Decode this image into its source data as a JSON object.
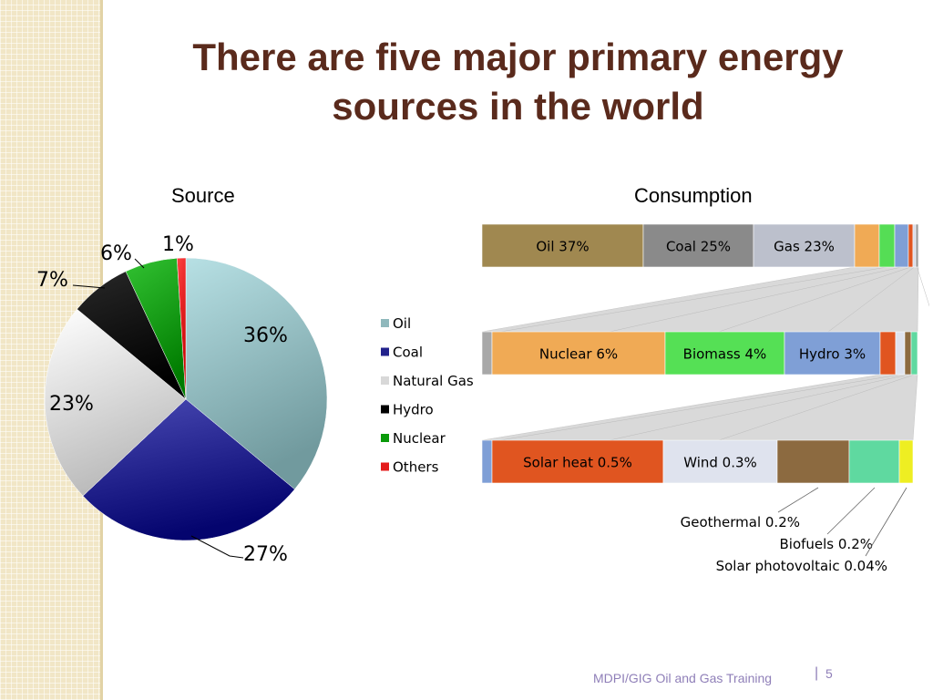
{
  "slide": {
    "title_line1": "There are five major primary energy",
    "title_line2": "sources in the world",
    "footer": "MDPI/GIG Oil and Gas Training",
    "separator": "|",
    "page_number": "5"
  },
  "chart_data": [
    {
      "type": "pie",
      "title": "Source",
      "categories": [
        "Oil",
        "Coal",
        "Natural Gas",
        "Hydro",
        "Nuclear",
        "Others"
      ],
      "values": [
        36,
        27,
        23,
        7,
        6,
        1
      ],
      "value_labels": [
        "36%",
        "27%",
        "23%",
        "7%",
        "6%",
        "1%"
      ],
      "colors": [
        "#8fb8bc",
        "#22228c",
        "#d8d8d8",
        "#000000",
        "#0a9a0a",
        "#e41b1b"
      ],
      "legend": {
        "position": "right",
        "entries": [
          "Oil",
          "Coal",
          "Natural Gas",
          "Hydro",
          "Nuclear",
          "Others"
        ]
      }
    },
    {
      "type": "bar",
      "title": "Consumption",
      "orientation": "horizontal stacked (exploded)",
      "rows": [
        {
          "segments": [
            {
              "label": "Oil 37%",
              "value": 37,
              "color": "#a08850"
            },
            {
              "label": "Coal 25%",
              "value": 25,
              "color": "#8a8a8a"
            },
            {
              "label": "Gas 23%",
              "value": 23,
              "color": "#bcc0cc"
            },
            {
              "label": "",
              "value": 6,
              "color": "#f0aa55"
            },
            {
              "label": "",
              "value": 4,
              "color": "#55dd55"
            },
            {
              "label": "",
              "value": 3,
              "color": "#7f9fd6"
            },
            {
              "label": "",
              "value": 0.5,
              "color": "#e05520"
            },
            {
              "label": "",
              "value": 0.3,
              "color": "#d6dbe8"
            },
            {
              "label": "",
              "value": 0.44,
              "color": "#a0a0a0"
            }
          ]
        },
        {
          "segments": [
            {
              "label": "",
              "value": 0.44,
              "color": "#a8a8a8"
            },
            {
              "label": "Nuclear 6%",
              "value": 6,
              "color": "#f0aa55"
            },
            {
              "label": "Biomass 4%",
              "value": 4,
              "color": "#55e055"
            },
            {
              "label": "Hydro 3%",
              "value": 3,
              "color": "#7f9fd6"
            },
            {
              "label": "",
              "value": 0.5,
              "color": "#e05520"
            },
            {
              "label": "",
              "value": 0.3,
              "color": "#dfe3ee"
            },
            {
              "label": "",
              "value": 0.2,
              "color": "#8c6a40"
            },
            {
              "label": "",
              "value": 0.2,
              "color": "#5fd9a0"
            }
          ]
        },
        {
          "segments": [
            {
              "label": "",
              "value": 0.03,
              "color": "#7f9fd6"
            },
            {
              "label": "Solar heat 0.5%",
              "value": 0.5,
              "color": "#e05520"
            },
            {
              "label": "Wind 0.3%",
              "value": 0.3,
              "color": "#dfe3ee"
            },
            {
              "label": "",
              "value": 0.2,
              "color": "#8c6a40"
            },
            {
              "label": "",
              "value": 0.15,
              "color": "#5fd9a0"
            },
            {
              "label": "",
              "value": 0.04,
              "color": "#eeee22"
            }
          ]
        }
      ],
      "annotations": [
        "Geothermal 0.2%",
        "Biofuels 0.2%",
        "Solar photovoltaic 0.04%"
      ]
    }
  ]
}
